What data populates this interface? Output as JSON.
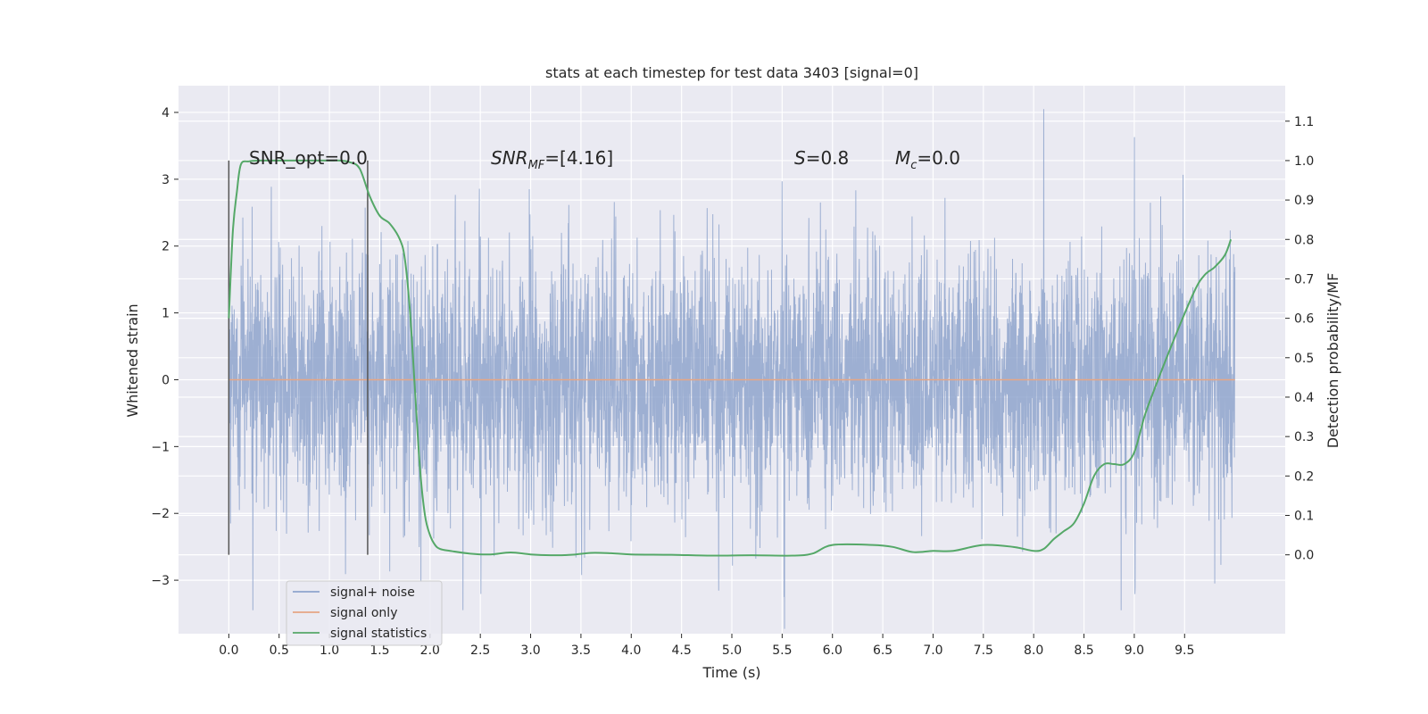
{
  "chart_data": {
    "type": "line",
    "title": "stats at each timestep for test data 3403 [signal=0]",
    "xlabel": "Time (s)",
    "ylabel": "Whitened strain",
    "ylabel_right": "Detection probability/MF",
    "xlim": [
      -0.5,
      10.5
    ],
    "ylim": [
      -3.8,
      4.4
    ],
    "ylim_right": [
      -0.2,
      1.19
    ],
    "grid": true,
    "legend_position": "lower-left",
    "x_ticks": [
      "0.0",
      "0.5",
      "1.0",
      "1.5",
      "2.0",
      "2.5",
      "3.0",
      "3.5",
      "4.0",
      "4.5",
      "5.0",
      "5.5",
      "6.0",
      "6.5",
      "7.0",
      "7.5",
      "8.0",
      "8.5",
      "9.0",
      "9.5"
    ],
    "y_ticks": [
      "4",
      "3",
      "2",
      "1",
      "0",
      "−1",
      "−2",
      "−3"
    ],
    "y_ticks_right": [
      "1.1",
      "1.0",
      "0.9",
      "0.8",
      "0.7",
      "0.6",
      "0.5",
      "0.4",
      "0.3",
      "0.2",
      "0.1",
      "0.0"
    ],
    "annotations": {
      "snr_opt": "SNR_opt=0.0",
      "snr_mf_main": "SNR",
      "snr_mf_sub": "MF",
      "snr_mf_value": "=[4.16]",
      "s_symbol": "S",
      "s_value": "=0.8",
      "mc_symbol": "M",
      "mc_sub": "c",
      "mc_value": "=0.0"
    },
    "vertical_markers_x": [
      0.0,
      1.38
    ],
    "series": [
      {
        "name": "signal+ noise",
        "axis": "left",
        "color": "#8fa4cd",
        "x_range": [
          0.0,
          10.0
        ],
        "mean": 0.0,
        "std": 0.95,
        "samples": 4096,
        "peak_values": [
          {
            "x": 8.1,
            "y": 4.05
          },
          {
            "x": 9.0,
            "y": 3.63
          },
          {
            "x": 8.87,
            "y": -3.45
          },
          {
            "x": 0.24,
            "y": -3.45
          },
          {
            "x": 5.52,
            "y": -3.25
          }
        ]
      },
      {
        "name": "signal only",
        "axis": "left",
        "color": "#e5a685",
        "x": [
          0.0,
          10.0
        ],
        "y": [
          0.0,
          0.0
        ]
      },
      {
        "name": "signal statistics",
        "axis": "right",
        "color": "#55a868",
        "x": [
          0.0,
          0.04,
          0.08,
          0.12,
          0.2,
          0.3,
          0.5,
          0.8,
          1.0,
          1.1,
          1.2,
          1.3,
          1.4,
          1.5,
          1.6,
          1.7,
          1.75,
          1.8,
          1.85,
          1.9,
          1.95,
          2.0,
          2.05,
          2.1,
          2.2,
          2.4,
          2.6,
          2.8,
          3.0,
          3.2,
          3.4,
          3.6,
          3.8,
          4.0,
          4.4,
          4.8,
          5.2,
          5.6,
          5.8,
          6.0,
          6.4,
          6.6,
          6.8,
          7.0,
          7.2,
          7.5,
          7.8,
          8.0,
          8.1,
          8.2,
          8.3,
          8.4,
          8.5,
          8.6,
          8.7,
          8.8,
          8.9,
          9.0,
          9.1,
          9.2,
          9.4,
          9.6,
          9.7,
          9.8,
          9.9,
          9.96
        ],
        "y": [
          0.6,
          0.82,
          0.92,
          0.99,
          0.998,
          1.0,
          1.0,
          1.0,
          1.0,
          1.0,
          0.996,
          0.98,
          0.91,
          0.86,
          0.84,
          0.8,
          0.75,
          0.62,
          0.42,
          0.22,
          0.1,
          0.05,
          0.025,
          0.015,
          0.01,
          0.003,
          0.001,
          0.006,
          0.001,
          -0.001,
          0.0,
          0.005,
          0.004,
          0.001,
          0.0,
          -0.002,
          -0.001,
          -0.002,
          0.003,
          0.025,
          0.025,
          0.02,
          0.007,
          0.01,
          0.01,
          0.025,
          0.02,
          0.01,
          0.015,
          0.04,
          0.06,
          0.08,
          0.13,
          0.2,
          0.23,
          0.23,
          0.23,
          0.26,
          0.35,
          0.42,
          0.55,
          0.67,
          0.71,
          0.73,
          0.76,
          0.8
        ]
      }
    ]
  },
  "legend": {
    "items": [
      {
        "label": "signal+ noise",
        "color": "#8fa4cd"
      },
      {
        "label": "signal only",
        "color": "#e5a685"
      },
      {
        "label": "signal statistics",
        "color": "#55a868"
      }
    ]
  }
}
